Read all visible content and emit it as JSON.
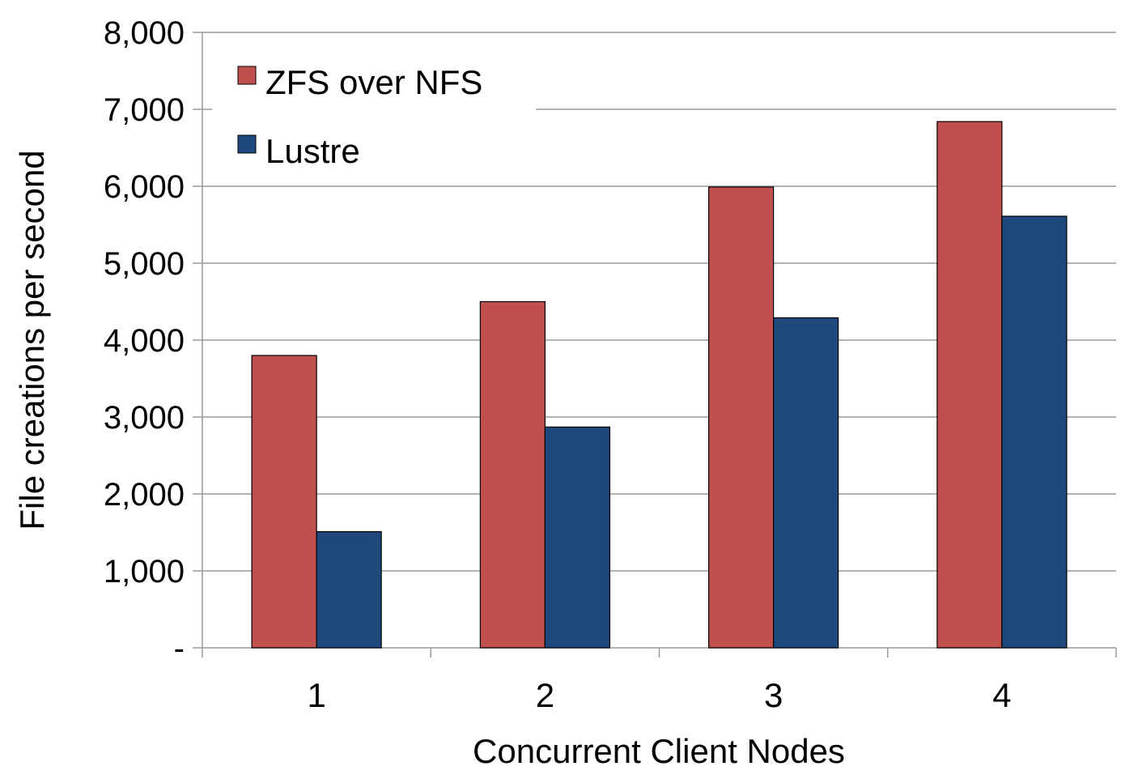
{
  "chart_data": {
    "type": "bar",
    "title": "",
    "xlabel": "Concurrent Client Nodes",
    "ylabel": "File creations per second",
    "categories": [
      "1",
      "2",
      "3",
      "4"
    ],
    "series": [
      {
        "name": "ZFS over NFS",
        "color": "#c0504d",
        "values": [
          3800,
          4500,
          5990,
          6840
        ]
      },
      {
        "name": "Lustre",
        "color": "#1f497d",
        "values": [
          1510,
          2870,
          4290,
          5610
        ]
      }
    ],
    "ylim": [
      0,
      8000
    ],
    "yticks": [
      0,
      1000,
      2000,
      3000,
      4000,
      5000,
      6000,
      7000,
      8000
    ],
    "ytick_labels": [
      "-",
      "1,000",
      "2,000",
      "3,000",
      "4,000",
      "5,000",
      "6,000",
      "7,000",
      "8,000"
    ],
    "grid": true,
    "legend_position": "top-left"
  }
}
